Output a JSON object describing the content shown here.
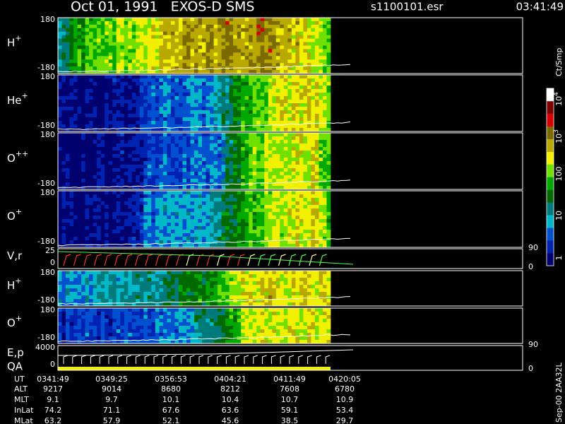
{
  "header": {
    "title": "Oct 01, 1991   EXOS-D SMS",
    "file": "s1100101.esr",
    "time": "03:41:49"
  },
  "panels": [
    {
      "label": "H",
      "sup": "+",
      "ticks": [
        "180",
        "-180"
      ]
    },
    {
      "label": "He",
      "sup": "+",
      "ticks": [
        "180",
        "-180"
      ]
    },
    {
      "label": "O",
      "sup": "++",
      "ticks": [
        "180",
        "-180"
      ]
    },
    {
      "label": "O",
      "sup": "+",
      "ticks": [
        "180",
        "-180"
      ]
    },
    {
      "label": "V,r",
      "ticks": [
        "25",
        "0"
      ],
      "right_ticks": [
        "90",
        "0"
      ]
    },
    {
      "label": "H",
      "sup": "+",
      "ticks": [
        "180",
        "-180"
      ]
    },
    {
      "label": "O",
      "sup": "+",
      "ticks": [
        "180",
        "-180"
      ]
    },
    {
      "label": "E,p",
      "label2": "QA",
      "ticks": [
        "4000",
        "0"
      ],
      "right_ticks": [
        "90",
        "0"
      ]
    }
  ],
  "colorbar": {
    "unit": "Ct/Smp",
    "labels": [
      {
        "base": "10",
        "exp": "4"
      },
      {
        "base": "10",
        "exp": "3"
      },
      {
        "base": "100"
      },
      {
        "base": "10"
      },
      {
        "base": "1"
      }
    ]
  },
  "table": {
    "rows": [
      [
        "UT",
        "0341:49",
        "0349:25",
        "0356:53",
        "0404:21",
        "0411:49",
        "0420:05"
      ],
      [
        "ALT",
        "9217",
        "9014",
        "8680",
        "8212",
        "7608",
        "6780"
      ],
      [
        "MLT",
        "9.1",
        "9.7",
        "10.1",
        "10.4",
        "10.7",
        "10.9"
      ],
      [
        "InLat",
        "74.2",
        "71.1",
        "67.6",
        "63.6",
        "59.1",
        "53.4"
      ],
      [
        "MLat",
        "63.2",
        "57.9",
        "52.1",
        "45.6",
        "38.5",
        "29.7"
      ]
    ]
  },
  "footer_id": "Sep-00 2AA32L"
}
